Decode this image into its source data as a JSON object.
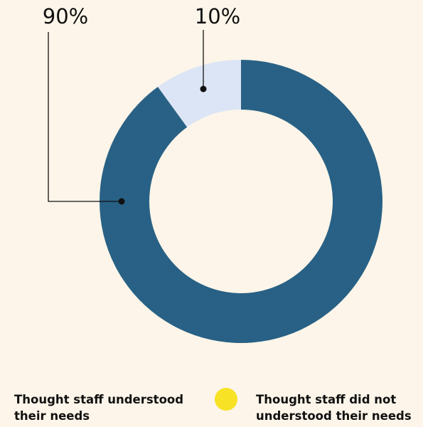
{
  "chart_data": {
    "type": "donut",
    "categories": [
      "Thought staff understood their needs",
      "Thought staff did not understood their needs"
    ],
    "values": [
      90,
      10
    ],
    "value_labels": [
      "90%",
      "10%"
    ],
    "colors": [
      "#286185",
      "#dce5f5"
    ],
    "legend_marker_colors": [
      "#fdf5e9",
      "#f7e225"
    ]
  }
}
